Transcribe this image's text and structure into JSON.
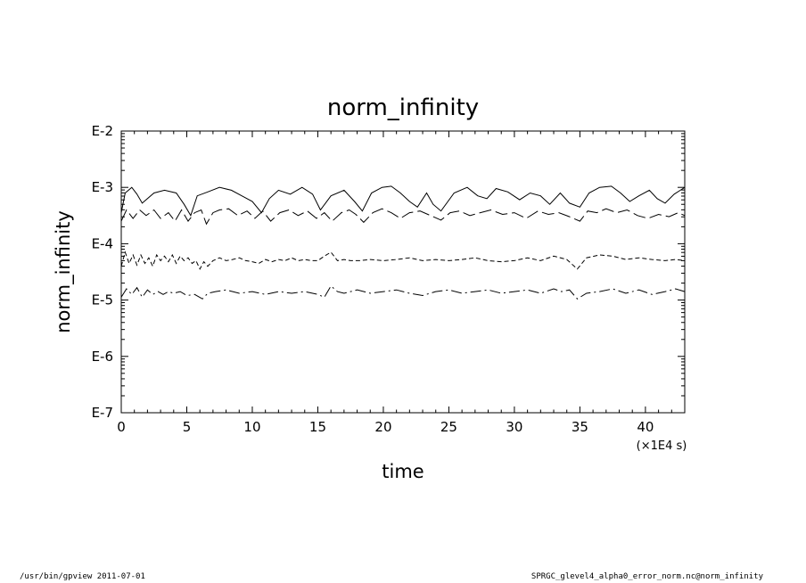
{
  "chart_data": {
    "type": "line",
    "title": "norm_infinity",
    "xlabel": "time",
    "ylabel": "norm_infinity",
    "x_unit": "(×1E4 s)",
    "xlim": [
      0,
      43
    ],
    "ylim_log10": [
      -7,
      -2
    ],
    "x_ticks": [
      0,
      5,
      10,
      15,
      20,
      25,
      30,
      35,
      40
    ],
    "y_ticks": [
      {
        "exp": -2,
        "label": "E-2"
      },
      {
        "exp": -3,
        "label": "E-3"
      },
      {
        "exp": -4,
        "label": "E-4"
      },
      {
        "exp": -5,
        "label": "E-5"
      },
      {
        "exp": -6,
        "label": "E-6"
      },
      {
        "exp": -7,
        "label": "E-7"
      }
    ],
    "y_scale": "log",
    "grid": false,
    "series": [
      {
        "style": "solid",
        "x": [
          0,
          0.3,
          0.8,
          1.2,
          1.6,
          2.5,
          3.3,
          4.2,
          4.8,
          5.3,
          5.8,
          6.6,
          7.5,
          8.4,
          9.2,
          10.0,
          10.7,
          11.3,
          12.0,
          12.9,
          13.8,
          14.6,
          15.2,
          16.0,
          17.0,
          17.8,
          18.4,
          19.1,
          19.9,
          20.6,
          21.3,
          22.0,
          22.6,
          23.3,
          23.8,
          24.4,
          25.4,
          26.4,
          27.2,
          27.9,
          28.6,
          29.5,
          30.4,
          31.2,
          32.0,
          32.7,
          33.5,
          34.2,
          35.0,
          35.7,
          36.5,
          37.4,
          38.1,
          38.8,
          39.5,
          40.3,
          40.9,
          41.5,
          42.2,
          43.0
        ],
        "y": [
          -3.45,
          -3.1,
          -3.0,
          -3.12,
          -3.28,
          -3.1,
          -3.05,
          -3.1,
          -3.3,
          -3.5,
          -3.15,
          -3.08,
          -3.0,
          -3.05,
          -3.15,
          -3.25,
          -3.45,
          -3.2,
          -3.05,
          -3.12,
          -3.0,
          -3.12,
          -3.4,
          -3.15,
          -3.05,
          -3.25,
          -3.42,
          -3.1,
          -3.0,
          -2.98,
          -3.1,
          -3.25,
          -3.35,
          -3.1,
          -3.3,
          -3.42,
          -3.1,
          -3.0,
          -3.15,
          -3.2,
          -3.02,
          -3.08,
          -3.22,
          -3.1,
          -3.15,
          -3.3,
          -3.1,
          -3.28,
          -3.35,
          -3.1,
          -3.0,
          -2.98,
          -3.1,
          -3.25,
          -3.15,
          -3.05,
          -3.2,
          -3.28,
          -3.12,
          -3.0
        ]
      },
      {
        "style": "long-dash",
        "x": [
          0,
          0.4,
          0.9,
          1.4,
          1.9,
          2.5,
          3.0,
          3.6,
          4.1,
          4.6,
          5.1,
          5.6,
          6.1,
          6.5,
          7.0,
          7.5,
          8.2,
          8.9,
          9.6,
          10.2,
          10.8,
          11.4,
          12.1,
          12.8,
          13.5,
          14.2,
          14.9,
          15.5,
          16.1,
          16.8,
          17.4,
          17.9,
          18.5,
          19.2,
          19.9,
          20.6,
          21.3,
          22.0,
          22.8,
          23.6,
          24.4,
          25.1,
          25.8,
          26.6,
          27.4,
          28.2,
          29.1,
          30.0,
          30.9,
          31.8,
          32.6,
          33.4,
          34.2,
          35.0,
          35.6,
          36.3,
          37.0,
          37.8,
          38.6,
          39.4,
          40.2,
          41.0,
          41.8,
          42.5,
          43.0
        ],
        "y": [
          -3.6,
          -3.4,
          -3.55,
          -3.4,
          -3.5,
          -3.4,
          -3.55,
          -3.45,
          -3.6,
          -3.4,
          -3.6,
          -3.45,
          -3.4,
          -3.65,
          -3.45,
          -3.4,
          -3.38,
          -3.5,
          -3.42,
          -3.55,
          -3.42,
          -3.6,
          -3.45,
          -3.4,
          -3.5,
          -3.42,
          -3.55,
          -3.45,
          -3.6,
          -3.45,
          -3.4,
          -3.48,
          -3.62,
          -3.45,
          -3.38,
          -3.45,
          -3.55,
          -3.45,
          -3.42,
          -3.5,
          -3.58,
          -3.45,
          -3.42,
          -3.5,
          -3.45,
          -3.4,
          -3.48,
          -3.45,
          -3.55,
          -3.42,
          -3.48,
          -3.45,
          -3.52,
          -3.6,
          -3.42,
          -3.45,
          -3.38,
          -3.45,
          -3.4,
          -3.5,
          -3.55,
          -3.48,
          -3.52,
          -3.45,
          -3.5
        ]
      },
      {
        "style": "short-dash",
        "x": [
          0,
          0.3,
          0.6,
          0.9,
          1.2,
          1.5,
          1.8,
          2.1,
          2.4,
          2.7,
          3.0,
          3.3,
          3.6,
          3.9,
          4.2,
          4.5,
          4.8,
          5.1,
          5.4,
          5.7,
          6.0,
          6.3,
          6.6,
          7.0,
          7.5,
          8.0,
          8.5,
          9.0,
          9.5,
          10.0,
          10.5,
          11.0,
          11.5,
          12.0,
          12.5,
          13.0,
          13.5,
          14.0,
          14.5,
          15.0,
          15.5,
          16.0,
          16.5,
          17.0,
          17.5,
          18.2,
          19.0,
          20.0,
          21.0,
          22.0,
          23.0,
          24.0,
          25.0,
          26.0,
          27.0,
          28.0,
          29.0,
          30.0,
          31.0,
          32.0,
          33.0,
          34.0,
          34.8,
          35.5,
          36.5,
          37.5,
          38.5,
          39.5,
          40.5,
          41.5,
          42.3,
          43.0
        ],
        "y": [
          -4.4,
          -4.15,
          -4.35,
          -4.2,
          -4.38,
          -4.2,
          -4.35,
          -4.25,
          -4.4,
          -4.2,
          -4.3,
          -4.22,
          -4.32,
          -4.2,
          -4.35,
          -4.22,
          -4.3,
          -4.25,
          -4.35,
          -4.3,
          -4.45,
          -4.32,
          -4.4,
          -4.3,
          -4.25,
          -4.3,
          -4.28,
          -4.25,
          -4.3,
          -4.32,
          -4.35,
          -4.28,
          -4.32,
          -4.28,
          -4.3,
          -4.25,
          -4.3,
          -4.28,
          -4.3,
          -4.3,
          -4.22,
          -4.15,
          -4.3,
          -4.28,
          -4.3,
          -4.3,
          -4.28,
          -4.3,
          -4.28,
          -4.25,
          -4.3,
          -4.28,
          -4.3,
          -4.28,
          -4.25,
          -4.3,
          -4.32,
          -4.3,
          -4.25,
          -4.3,
          -4.22,
          -4.28,
          -4.45,
          -4.25,
          -4.2,
          -4.22,
          -4.28,
          -4.25,
          -4.28,
          -4.3,
          -4.28,
          -4.3
        ]
      },
      {
        "style": "dash-dot",
        "x": [
          0,
          0.4,
          0.8,
          1.2,
          1.6,
          2.0,
          2.4,
          2.8,
          3.2,
          3.6,
          4.0,
          4.5,
          5.0,
          5.6,
          6.2,
          6.6,
          7.2,
          8.0,
          9.0,
          10.0,
          11.0,
          12.0,
          13.0,
          14.0,
          15.0,
          15.5,
          16.0,
          16.5,
          17.0,
          18.0,
          19.0,
          20.0,
          21.0,
          22.0,
          23.0,
          24.0,
          25.0,
          26.0,
          27.0,
          28.0,
          29.0,
          30.0,
          31.0,
          32.0,
          33.0,
          33.6,
          34.2,
          34.8,
          35.5,
          36.5,
          37.5,
          38.5,
          39.5,
          40.5,
          41.5,
          42.3,
          43.0
        ],
        "y": [
          -4.95,
          -4.8,
          -4.9,
          -4.78,
          -4.95,
          -4.82,
          -4.9,
          -4.85,
          -4.9,
          -4.85,
          -4.88,
          -4.85,
          -4.92,
          -4.9,
          -4.98,
          -4.88,
          -4.85,
          -4.82,
          -4.88,
          -4.85,
          -4.9,
          -4.85,
          -4.88,
          -4.85,
          -4.9,
          -4.95,
          -4.75,
          -4.85,
          -4.88,
          -4.82,
          -4.88,
          -4.85,
          -4.82,
          -4.88,
          -4.92,
          -4.85,
          -4.82,
          -4.88,
          -4.85,
          -4.82,
          -4.88,
          -4.85,
          -4.82,
          -4.88,
          -4.8,
          -4.85,
          -4.82,
          -4.98,
          -4.88,
          -4.85,
          -4.8,
          -4.88,
          -4.82,
          -4.9,
          -4.85,
          -4.8,
          -4.85
        ]
      }
    ]
  },
  "footer": {
    "left": "/usr/bin/gpview   2011-07-01",
    "right": "SPRGC_glevel4_alpha0_error_norm.nc@norm_infinity"
  }
}
